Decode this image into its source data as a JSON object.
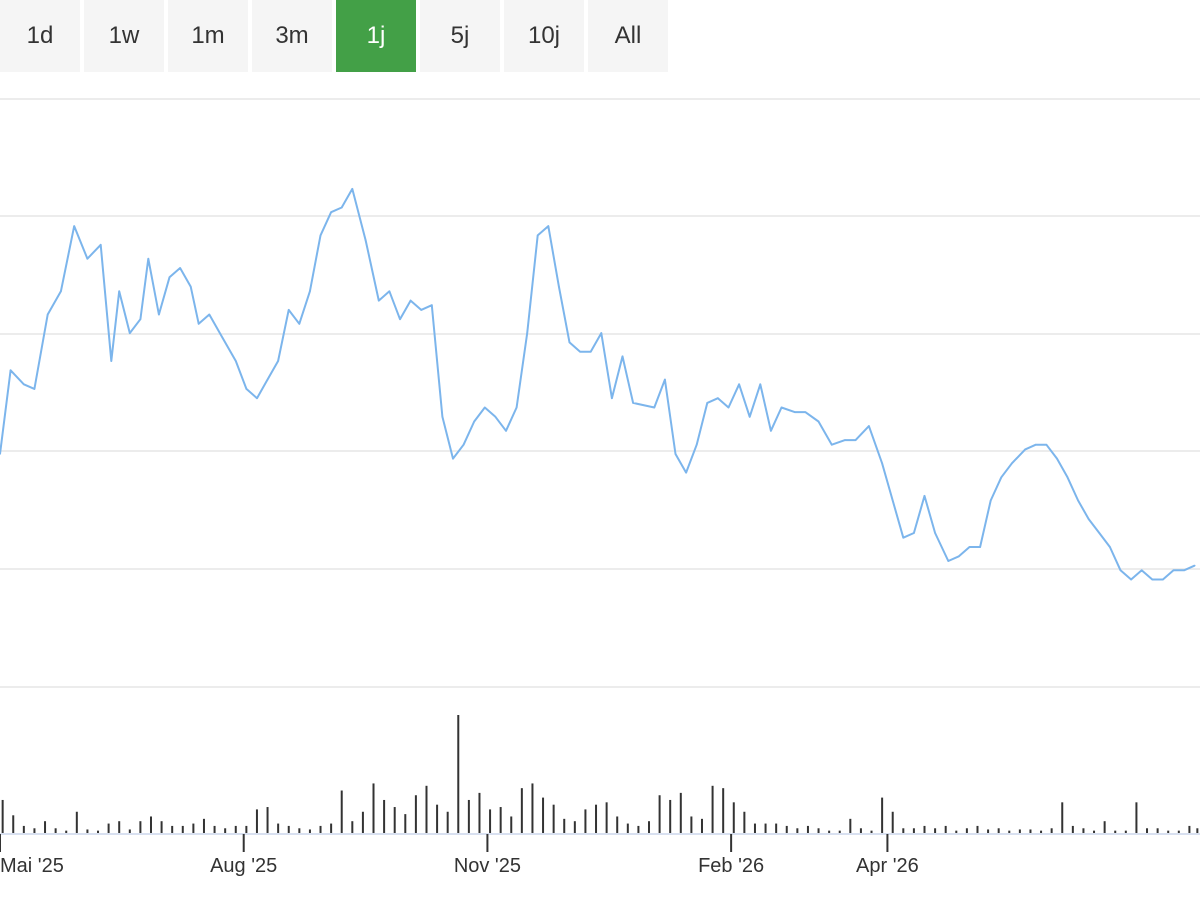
{
  "range_tabs": [
    {
      "label": "1d",
      "active": false
    },
    {
      "label": "1w",
      "active": false
    },
    {
      "label": "1m",
      "active": false
    },
    {
      "label": "3m",
      "active": false
    },
    {
      "label": "1j",
      "active": true
    },
    {
      "label": "5j",
      "active": false
    },
    {
      "label": "10j",
      "active": false
    },
    {
      "label": "All",
      "active": false
    }
  ],
  "colors": {
    "price_line": "#7cb5ec",
    "volume_bar": "#333333",
    "active_tab": "#43a047",
    "gridline": "#e6e6e6"
  },
  "chart_data": {
    "type": "line",
    "title": "",
    "xlabel": "",
    "ylabel": "",
    "price_axis_labels_visible": false,
    "grid": true,
    "x_ticks": [
      {
        "label": "Mai '25",
        "date": "2025-05-01"
      },
      {
        "label": "Aug '25",
        "date": "2025-08-01"
      },
      {
        "label": "Nov '25",
        "date": "2025-11-01"
      },
      {
        "label": "Feb '26",
        "date": "2026-02-01"
      },
      {
        "label": "Apr '26",
        "date": "2026-04-01"
      }
    ],
    "x_range": [
      "2025-05-01",
      "2026-07-28"
    ],
    "y_range": [
      0,
      100
    ],
    "series": [
      {
        "type": "line",
        "points": [
          [
            "2025-05-01",
            40
          ],
          [
            "2025-05-05",
            58
          ],
          [
            "2025-05-10",
            55
          ],
          [
            "2025-05-14",
            54
          ],
          [
            "2025-05-19",
            70
          ],
          [
            "2025-05-24",
            75
          ],
          [
            "2025-05-29",
            89
          ],
          [
            "2025-06-03",
            82
          ],
          [
            "2025-06-08",
            85
          ],
          [
            "2025-06-12",
            60
          ],
          [
            "2025-06-15",
            75
          ],
          [
            "2025-06-19",
            66
          ],
          [
            "2025-06-23",
            69
          ],
          [
            "2025-06-26",
            82
          ],
          [
            "2025-06-30",
            70
          ],
          [
            "2025-07-04",
            78
          ],
          [
            "2025-07-08",
            80
          ],
          [
            "2025-07-12",
            76
          ],
          [
            "2025-07-15",
            68
          ],
          [
            "2025-07-19",
            70
          ],
          [
            "2025-07-24",
            65
          ],
          [
            "2025-07-29",
            60
          ],
          [
            "2025-08-02",
            54
          ],
          [
            "2025-08-06",
            52
          ],
          [
            "2025-08-10",
            56
          ],
          [
            "2025-08-14",
            60
          ],
          [
            "2025-08-18",
            71
          ],
          [
            "2025-08-22",
            68
          ],
          [
            "2025-08-26",
            75
          ],
          [
            "2025-08-30",
            87
          ],
          [
            "2025-09-03",
            92
          ],
          [
            "2025-09-07",
            93
          ],
          [
            "2025-09-11",
            97
          ],
          [
            "2025-09-16",
            86
          ],
          [
            "2025-09-21",
            73
          ],
          [
            "2025-09-25",
            75
          ],
          [
            "2025-09-29",
            69
          ],
          [
            "2025-10-03",
            73
          ],
          [
            "2025-10-07",
            71
          ],
          [
            "2025-10-11",
            72
          ],
          [
            "2025-10-15",
            48
          ],
          [
            "2025-10-19",
            39
          ],
          [
            "2025-10-23",
            42
          ],
          [
            "2025-10-27",
            47
          ],
          [
            "2025-10-31",
            50
          ],
          [
            "2025-11-04",
            48
          ],
          [
            "2025-11-08",
            45
          ],
          [
            "2025-11-12",
            50
          ],
          [
            "2025-11-16",
            66
          ],
          [
            "2025-11-20",
            87
          ],
          [
            "2025-11-24",
            89
          ],
          [
            "2025-11-28",
            76
          ],
          [
            "2025-12-02",
            64
          ],
          [
            "2025-12-06",
            62
          ],
          [
            "2025-12-10",
            62
          ],
          [
            "2025-12-14",
            66
          ],
          [
            "2025-12-18",
            52
          ],
          [
            "2025-12-22",
            61
          ],
          [
            "2025-12-26",
            51
          ],
          [
            "2026-01-03",
            50
          ],
          [
            "2026-01-07",
            56
          ],
          [
            "2026-01-11",
            40
          ],
          [
            "2026-01-15",
            36
          ],
          [
            "2026-01-19",
            42
          ],
          [
            "2026-01-23",
            51
          ],
          [
            "2026-01-27",
            52
          ],
          [
            "2026-01-31",
            50
          ],
          [
            "2026-02-04",
            55
          ],
          [
            "2026-02-08",
            48
          ],
          [
            "2026-02-12",
            55
          ],
          [
            "2026-02-16",
            45
          ],
          [
            "2026-02-20",
            50
          ],
          [
            "2026-02-25",
            49
          ],
          [
            "2026-03-01",
            49
          ],
          [
            "2026-03-06",
            47
          ],
          [
            "2026-03-11",
            42
          ],
          [
            "2026-03-16",
            43
          ],
          [
            "2026-03-20",
            43
          ],
          [
            "2026-03-25",
            46
          ],
          [
            "2026-03-30",
            38
          ],
          [
            "2026-04-03",
            30
          ],
          [
            "2026-04-07",
            22
          ],
          [
            "2026-04-11",
            23
          ],
          [
            "2026-04-15",
            31
          ],
          [
            "2026-04-19",
            23
          ],
          [
            "2026-04-24",
            17
          ],
          [
            "2026-04-28",
            18
          ],
          [
            "2026-05-02",
            20
          ],
          [
            "2026-05-06",
            20
          ],
          [
            "2026-05-10",
            30
          ],
          [
            "2026-05-14",
            35
          ],
          [
            "2026-05-18",
            38
          ],
          [
            "2026-05-23",
            41
          ],
          [
            "2026-05-27",
            42
          ],
          [
            "2026-05-31",
            42
          ],
          [
            "2026-06-04",
            39
          ],
          [
            "2026-06-08",
            35
          ],
          [
            "2026-06-12",
            30
          ],
          [
            "2026-06-16",
            26
          ],
          [
            "2026-06-20",
            23
          ],
          [
            "2026-06-24",
            20
          ],
          [
            "2026-06-28",
            15
          ],
          [
            "2026-07-02",
            13
          ],
          [
            "2026-07-06",
            15
          ],
          [
            "2026-07-10",
            13
          ],
          [
            "2026-07-14",
            13
          ],
          [
            "2026-07-18",
            15
          ],
          [
            "2026-07-22",
            15
          ],
          [
            "2026-07-26",
            16
          ]
        ]
      },
      {
        "type": "volume",
        "points": [
          [
            "2025-05-02",
            28
          ],
          [
            "2025-05-06",
            15
          ],
          [
            "2025-05-10",
            6
          ],
          [
            "2025-05-14",
            4
          ],
          [
            "2025-05-18",
            10
          ],
          [
            "2025-05-22",
            4
          ],
          [
            "2025-05-26",
            2
          ],
          [
            "2025-05-30",
            18
          ],
          [
            "2025-06-03",
            3
          ],
          [
            "2025-06-07",
            2
          ],
          [
            "2025-06-11",
            8
          ],
          [
            "2025-06-15",
            10
          ],
          [
            "2025-06-19",
            3
          ],
          [
            "2025-06-23",
            10
          ],
          [
            "2025-06-27",
            14
          ],
          [
            "2025-07-01",
            10
          ],
          [
            "2025-07-05",
            6
          ],
          [
            "2025-07-09",
            6
          ],
          [
            "2025-07-13",
            8
          ],
          [
            "2025-07-17",
            12
          ],
          [
            "2025-07-21",
            6
          ],
          [
            "2025-07-25",
            4
          ],
          [
            "2025-07-29",
            6
          ],
          [
            "2025-08-02",
            6
          ],
          [
            "2025-08-06",
            20
          ],
          [
            "2025-08-10",
            22
          ],
          [
            "2025-08-14",
            8
          ],
          [
            "2025-08-18",
            6
          ],
          [
            "2025-08-22",
            4
          ],
          [
            "2025-08-26",
            3
          ],
          [
            "2025-08-30",
            6
          ],
          [
            "2025-09-03",
            8
          ],
          [
            "2025-09-07",
            36
          ],
          [
            "2025-09-11",
            10
          ],
          [
            "2025-09-15",
            18
          ],
          [
            "2025-09-19",
            42
          ],
          [
            "2025-09-23",
            28
          ],
          [
            "2025-09-27",
            22
          ],
          [
            "2025-10-01",
            16
          ],
          [
            "2025-10-05",
            32
          ],
          [
            "2025-10-09",
            40
          ],
          [
            "2025-10-13",
            24
          ],
          [
            "2025-10-17",
            18
          ],
          [
            "2025-10-21",
            100
          ],
          [
            "2025-10-25",
            28
          ],
          [
            "2025-10-29",
            34
          ],
          [
            "2025-11-02",
            20
          ],
          [
            "2025-11-06",
            22
          ],
          [
            "2025-11-10",
            14
          ],
          [
            "2025-11-14",
            38
          ],
          [
            "2025-11-18",
            42
          ],
          [
            "2025-11-22",
            30
          ],
          [
            "2025-11-26",
            24
          ],
          [
            "2025-11-30",
            12
          ],
          [
            "2025-12-04",
            10
          ],
          [
            "2025-12-08",
            20
          ],
          [
            "2025-12-12",
            24
          ],
          [
            "2025-12-16",
            26
          ],
          [
            "2025-12-20",
            14
          ],
          [
            "2025-12-24",
            8
          ],
          [
            "2025-12-28",
            6
          ],
          [
            "2026-01-01",
            10
          ],
          [
            "2026-01-05",
            32
          ],
          [
            "2026-01-09",
            28
          ],
          [
            "2026-01-13",
            34
          ],
          [
            "2026-01-17",
            14
          ],
          [
            "2026-01-21",
            12
          ],
          [
            "2026-01-25",
            40
          ],
          [
            "2026-01-29",
            38
          ],
          [
            "2026-02-02",
            26
          ],
          [
            "2026-02-06",
            18
          ],
          [
            "2026-02-10",
            8
          ],
          [
            "2026-02-14",
            8
          ],
          [
            "2026-02-18",
            8
          ],
          [
            "2026-02-22",
            6
          ],
          [
            "2026-02-26",
            4
          ],
          [
            "2026-03-02",
            6
          ],
          [
            "2026-03-06",
            4
          ],
          [
            "2026-03-10",
            2
          ],
          [
            "2026-03-14",
            2
          ],
          [
            "2026-03-18",
            12
          ],
          [
            "2026-03-22",
            4
          ],
          [
            "2026-03-26",
            2
          ],
          [
            "2026-03-30",
            30
          ],
          [
            "2026-04-03",
            18
          ],
          [
            "2026-04-07",
            4
          ],
          [
            "2026-04-11",
            4
          ],
          [
            "2026-04-15",
            6
          ],
          [
            "2026-04-19",
            4
          ],
          [
            "2026-04-23",
            6
          ],
          [
            "2026-04-27",
            2
          ],
          [
            "2026-05-01",
            4
          ],
          [
            "2026-05-05",
            6
          ],
          [
            "2026-05-09",
            3
          ],
          [
            "2026-05-13",
            4
          ],
          [
            "2026-05-17",
            2
          ],
          [
            "2026-05-21",
            3
          ],
          [
            "2026-05-25",
            3
          ],
          [
            "2026-05-29",
            2
          ],
          [
            "2026-06-02",
            4
          ],
          [
            "2026-06-06",
            26
          ],
          [
            "2026-06-10",
            6
          ],
          [
            "2026-06-14",
            4
          ],
          [
            "2026-06-18",
            2
          ],
          [
            "2026-06-22",
            10
          ],
          [
            "2026-06-26",
            2
          ],
          [
            "2026-06-30",
            2
          ],
          [
            "2026-07-04",
            26
          ],
          [
            "2026-07-08",
            4
          ],
          [
            "2026-07-12",
            4
          ],
          [
            "2026-07-16",
            2
          ],
          [
            "2026-07-20",
            2
          ],
          [
            "2026-07-24",
            6
          ],
          [
            "2026-07-27",
            4
          ]
        ]
      }
    ]
  }
}
